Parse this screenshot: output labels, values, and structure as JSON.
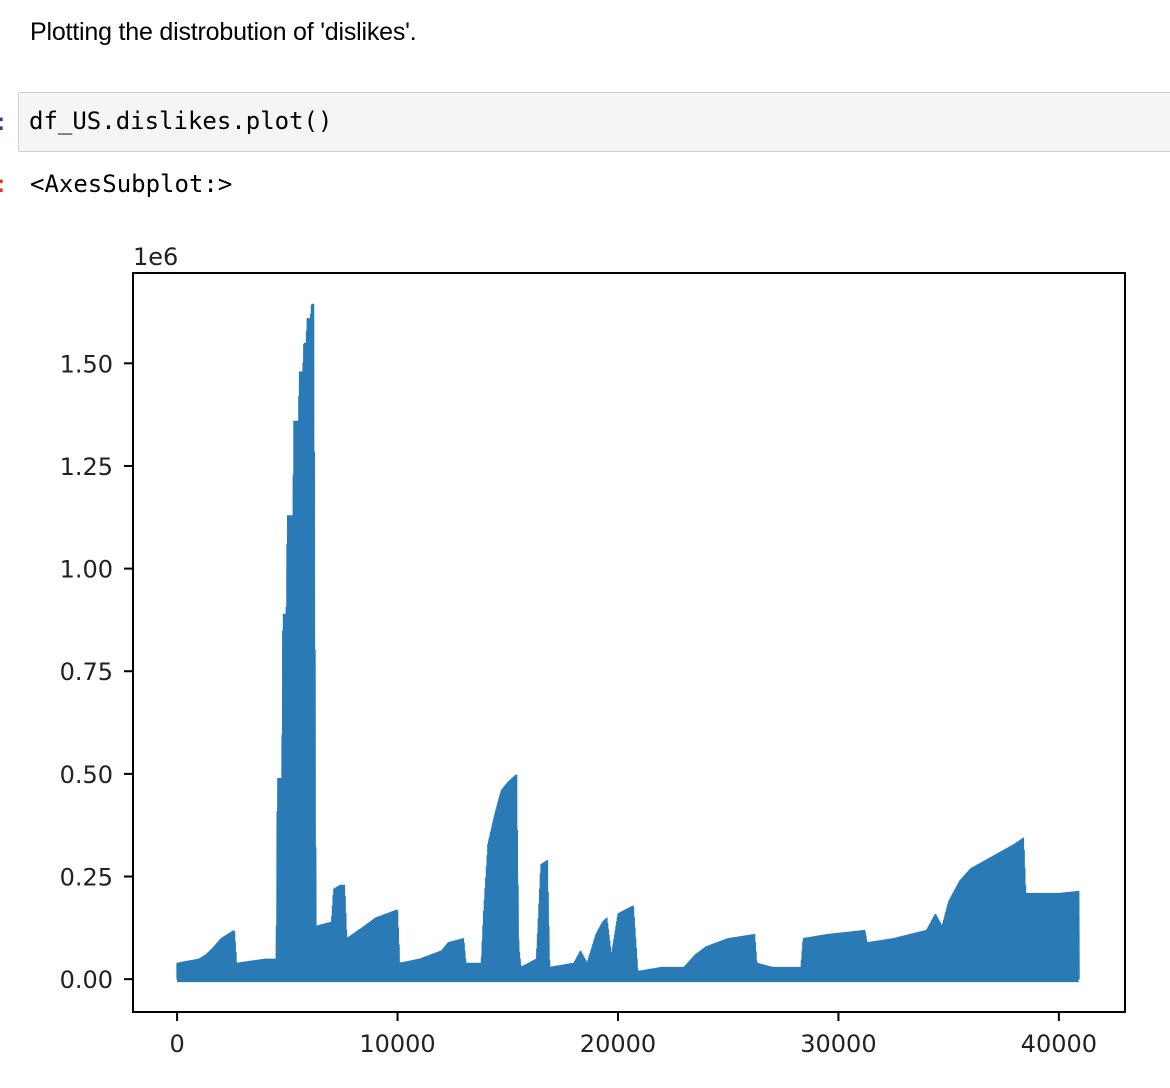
{
  "markdown": {
    "text": "Plotting the distrobution of 'dislikes'."
  },
  "input_cell": {
    "prompt": ":",
    "code": "df_US.dislikes.plot()"
  },
  "output_cell": {
    "prompt": ":",
    "text": "<AxesSubplot:>"
  },
  "colors": {
    "line": "#2a7ab5",
    "axes": "#000000",
    "in_prompt": "#303f9f",
    "out_prompt": "#d84315"
  },
  "chart_data": {
    "type": "line",
    "offset_label": "1e6",
    "xlim": [
      -2000,
      43000
    ],
    "ylim": [
      -0.08,
      1.72
    ],
    "xticks": [
      0,
      10000,
      20000,
      30000,
      40000
    ],
    "xtick_labels": [
      "0",
      "10000",
      "20000",
      "30000",
      "40000"
    ],
    "yticks": [
      0.0,
      0.25,
      0.5,
      0.75,
      1.0,
      1.25,
      1.5
    ],
    "ytick_labels": [
      "0.00",
      "0.25",
      "0.50",
      "0.75",
      "1.00",
      "1.25",
      "1.50"
    ],
    "grid": false,
    "legend": "none",
    "envelope": [
      [
        0,
        0.04
      ],
      [
        1000,
        0.05
      ],
      [
        1300,
        0.06
      ],
      [
        1600,
        0.075
      ],
      [
        2000,
        0.1
      ],
      [
        2600,
        0.12
      ],
      [
        2700,
        0.04
      ],
      [
        4000,
        0.05
      ],
      [
        4500,
        0.05
      ],
      [
        4550,
        0.49
      ],
      [
        4750,
        0.49
      ],
      [
        4800,
        0.89
      ],
      [
        4950,
        0.89
      ],
      [
        5000,
        1.13
      ],
      [
        5250,
        1.13
      ],
      [
        5300,
        1.36
      ],
      [
        5500,
        1.36
      ],
      [
        5550,
        1.48
      ],
      [
        5700,
        1.48
      ],
      [
        5750,
        1.55
      ],
      [
        5850,
        1.55
      ],
      [
        5900,
        1.61
      ],
      [
        6050,
        1.61
      ],
      [
        6100,
        1.645
      ],
      [
        6200,
        1.645
      ],
      [
        6300,
        0.13
      ],
      [
        7000,
        0.14
      ],
      [
        7100,
        0.22
      ],
      [
        7400,
        0.23
      ],
      [
        7600,
        0.23
      ],
      [
        7700,
        0.1
      ],
      [
        8500,
        0.13
      ],
      [
        9000,
        0.15
      ],
      [
        10000,
        0.17
      ],
      [
        10100,
        0.04
      ],
      [
        11000,
        0.05
      ],
      [
        12000,
        0.07
      ],
      [
        12300,
        0.09
      ],
      [
        13000,
        0.1
      ],
      [
        13100,
        0.04
      ],
      [
        13800,
        0.04
      ],
      [
        13900,
        0.16
      ],
      [
        14100,
        0.33
      ],
      [
        14400,
        0.4
      ],
      [
        14700,
        0.46
      ],
      [
        15000,
        0.48
      ],
      [
        15400,
        0.5
      ],
      [
        15500,
        0.08
      ],
      [
        15600,
        0.03
      ],
      [
        16300,
        0.05
      ],
      [
        16500,
        0.28
      ],
      [
        16800,
        0.29
      ],
      [
        16900,
        0.03
      ],
      [
        18000,
        0.04
      ],
      [
        18300,
        0.07
      ],
      [
        18600,
        0.04
      ],
      [
        19000,
        0.11
      ],
      [
        19300,
        0.14
      ],
      [
        19500,
        0.15
      ],
      [
        19700,
        0.06
      ],
      [
        20000,
        0.16
      ],
      [
        20700,
        0.18
      ],
      [
        20900,
        0.02
      ],
      [
        22000,
        0.03
      ],
      [
        23000,
        0.03
      ],
      [
        23500,
        0.06
      ],
      [
        24000,
        0.08
      ],
      [
        25000,
        0.1
      ],
      [
        26200,
        0.11
      ],
      [
        26300,
        0.04
      ],
      [
        27000,
        0.03
      ],
      [
        28300,
        0.03
      ],
      [
        28400,
        0.1
      ],
      [
        29500,
        0.11
      ],
      [
        31200,
        0.12
      ],
      [
        31300,
        0.09
      ],
      [
        32500,
        0.1
      ],
      [
        34000,
        0.12
      ],
      [
        34400,
        0.16
      ],
      [
        34700,
        0.13
      ],
      [
        35000,
        0.19
      ],
      [
        35500,
        0.24
      ],
      [
        36000,
        0.27
      ],
      [
        37000,
        0.3
      ],
      [
        38000,
        0.33
      ],
      [
        38400,
        0.345
      ],
      [
        38500,
        0.21
      ],
      [
        40000,
        0.21
      ],
      [
        40900,
        0.215
      ]
    ]
  }
}
